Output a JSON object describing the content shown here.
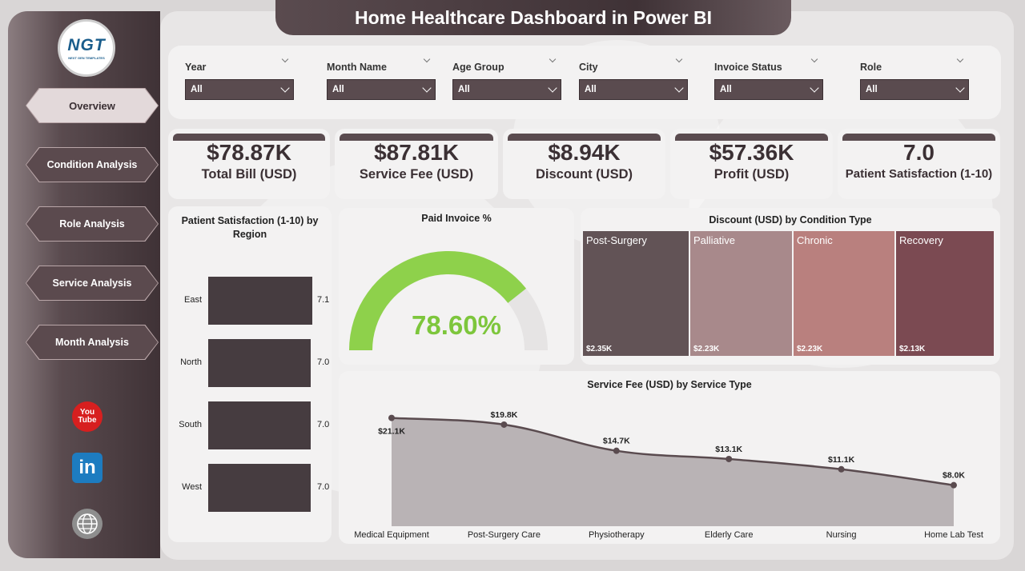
{
  "header": {
    "title": "Home Healthcare Dashboard in Power BI"
  },
  "logo": {
    "main": "NGT",
    "sub": "NEXT GEN TEMPLATES"
  },
  "nav": [
    {
      "label": "Overview",
      "active": true
    },
    {
      "label": "Condition Analysis",
      "active": false
    },
    {
      "label": "Role Analysis",
      "active": false
    },
    {
      "label": "Service Analysis",
      "active": false
    },
    {
      "label": "Month Analysis",
      "active": false
    }
  ],
  "social": {
    "youtube": "You Tube",
    "linkedin": "in",
    "web_icon": "globe-www-icon"
  },
  "slicers": [
    {
      "label": "Year",
      "value": "All"
    },
    {
      "label": "Month Name",
      "value": "All"
    },
    {
      "label": "Age Group",
      "value": "All"
    },
    {
      "label": "City",
      "value": "All"
    },
    {
      "label": "Invoice Status",
      "value": "All"
    },
    {
      "label": "Role",
      "value": "All"
    }
  ],
  "kpis": [
    {
      "value": "$78.87K",
      "label": "Total Bill (USD)"
    },
    {
      "value": "$87.81K",
      "label": "Service Fee (USD)"
    },
    {
      "value": "$8.94K",
      "label": "Discount (USD)"
    },
    {
      "value": "$57.36K",
      "label": "Profit (USD)"
    },
    {
      "value": "7.0",
      "label": "Patient Satisfaction (1-10)"
    }
  ],
  "colors": {
    "accent": "#5a4b4f",
    "gauge": "#8ed14b",
    "gauge_text": "#7dc63c",
    "bar": "#463c40"
  },
  "chart_data": [
    {
      "type": "bar",
      "orientation": "horizontal",
      "title": "Patient Satisfaction (1-10) by Region",
      "categories": [
        "East",
        "North",
        "South",
        "West"
      ],
      "values": [
        7.1,
        7.0,
        7.0,
        7.0
      ],
      "labels": [
        "7.1",
        "7.0",
        "7.0",
        "7.0"
      ]
    },
    {
      "type": "gauge",
      "title": "Paid Invoice %",
      "value": 78.6,
      "max": 100,
      "label": "78.60%"
    },
    {
      "type": "treemap",
      "title": "Discount (USD) by Condition Type",
      "categories": [
        "Post-Surgery",
        "Palliative",
        "Chronic",
        "Recovery"
      ],
      "values": [
        2.35,
        2.23,
        2.23,
        2.13
      ],
      "labels": [
        "$2.35K",
        "$2.23K",
        "$2.23K",
        "$2.13K"
      ],
      "colors": [
        "#625356",
        "#a8898b",
        "#b9807e",
        "#7b4a52"
      ]
    },
    {
      "type": "area",
      "title": "Service Fee (USD) by Service Type",
      "categories": [
        "Medical Equipment",
        "Post-Surgery Care",
        "Physiotherapy",
        "Elderly Care",
        "Nursing",
        "Home Lab Test"
      ],
      "values": [
        21.1,
        19.8,
        14.7,
        13.1,
        11.1,
        8.0
      ],
      "labels": [
        "$21.1K",
        "$19.8K",
        "$14.7K",
        "$13.1K",
        "$11.1K",
        "$8.0K"
      ]
    }
  ]
}
